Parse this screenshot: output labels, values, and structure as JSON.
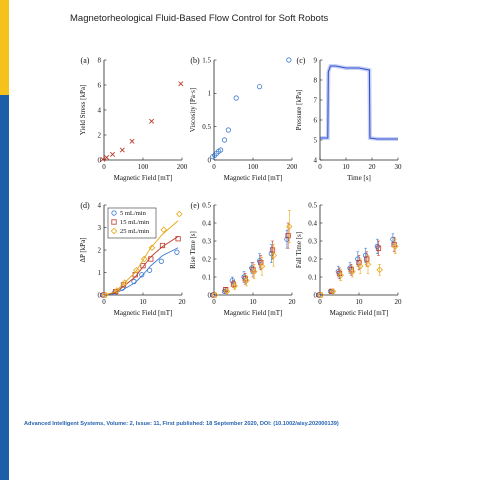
{
  "page": {
    "title": "Magnetorheological Fluid-Based Flow Control for Soft Robots",
    "citation": "Advanced Intelligent Systems, Volume: 2, Issue: 11, First published: 18 September 2020, DOI: (10.1002/aisy.202000139)"
  },
  "colors": {
    "stripe_blue": "#1d5ea8",
    "stripe_yellow": "#f5c21b",
    "blue": "#3b7bd0",
    "red": "#c0392b",
    "orange": "#e6a817",
    "pressure": "#2f4fd0"
  },
  "chart_data": [
    {
      "id": "a",
      "panel_label": "(a)",
      "type": "scatter",
      "xlabel": "Magnetic Field [mT]",
      "ylabel": "Yield Stress [kPa]",
      "xlim": [
        0,
        200
      ],
      "ylim": [
        0,
        8
      ],
      "xticks": [
        "0",
        "100",
        "200"
      ],
      "yticks": [
        "0",
        "2",
        "4",
        "6",
        "8"
      ],
      "series": [
        {
          "marker": "x",
          "color": "#c0392b",
          "x": [
            0,
            10,
            25,
            50,
            75,
            125,
            200
          ],
          "y": [
            0.05,
            0.2,
            0.45,
            0.8,
            1.5,
            3.1,
            6.1
          ]
        }
      ]
    },
    {
      "id": "b",
      "panel_label": "(b)",
      "type": "scatter",
      "xlabel": "Magnetic Field [mT]",
      "ylabel": "Viscosity [Pa·s]",
      "xlim": [
        0,
        200
      ],
      "ylim": [
        0,
        1.5
      ],
      "xticks": [
        "0",
        "100",
        "200"
      ],
      "yticks": [
        "0",
        "0.5",
        "1",
        "1.5"
      ],
      "series": [
        {
          "marker": "o",
          "color": "#3b7bd0",
          "x": [
            0,
            5,
            10,
            15,
            20,
            30,
            40,
            60,
            120,
            195
          ],
          "y": [
            0.05,
            0.07,
            0.1,
            0.13,
            0.15,
            0.3,
            0.45,
            0.93,
            1.1,
            1.5
          ]
        }
      ]
    },
    {
      "id": "c",
      "panel_label": "(c)",
      "type": "line",
      "xlabel": "Time [s]",
      "ylabel": "Pressure [kPa]",
      "xlim": [
        0,
        30
      ],
      "ylim": [
        4,
        9
      ],
      "xticks": [
        "0",
        "10",
        "20",
        "30"
      ],
      "yticks": [
        "4",
        "5",
        "6",
        "7",
        "8",
        "9"
      ],
      "series": [
        {
          "color": "#2f4fd0",
          "x": [
            0,
            3,
            3.2,
            4,
            6,
            10,
            15,
            19,
            19.2,
            22,
            30
          ],
          "y": [
            5.1,
            5.1,
            8.4,
            8.7,
            8.7,
            8.6,
            8.6,
            8.5,
            5.1,
            5.05,
            5.05
          ]
        }
      ]
    },
    {
      "id": "d",
      "panel_label": "(d)",
      "type": "scatter",
      "xlabel": "Magnetic Field [mT]",
      "ylabel": "ΔP [kPa]",
      "xlim": [
        0,
        20
      ],
      "ylim": [
        0,
        4
      ],
      "xticks": [
        "0",
        "10",
        "20"
      ],
      "yticks": [
        "0",
        "1",
        "2",
        "3",
        "4"
      ],
      "legend": {
        "position": "top-left",
        "entries": [
          "5 mL/min",
          "15 mL/min",
          "25 mL/min"
        ]
      },
      "series": [
        {
          "name": "5 mL/min",
          "marker": "o",
          "color": "#3b7bd0",
          "x": [
            0,
            3,
            5,
            8,
            10,
            12,
            15,
            19
          ],
          "y": [
            0,
            0.1,
            0.3,
            0.6,
            0.9,
            1.1,
            1.5,
            1.9
          ],
          "fit": [
            0,
            0.08,
            0.25,
            0.55,
            0.9,
            1.3,
            1.75,
            2.1
          ]
        },
        {
          "name": "15 mL/min",
          "marker": "square",
          "color": "#c0392b",
          "x": [
            0,
            3,
            5,
            8,
            10,
            12,
            15,
            19
          ],
          "y": [
            0,
            0.15,
            0.45,
            0.9,
            1.3,
            1.6,
            2.2,
            2.5
          ],
          "fit": [
            0,
            0.12,
            0.38,
            0.8,
            1.25,
            1.7,
            2.15,
            2.6
          ]
        },
        {
          "name": "25 mL/min",
          "marker": "diamond",
          "color": "#e6a817",
          "x": [
            0,
            3,
            5,
            8,
            10,
            12,
            15,
            19
          ],
          "y": [
            0,
            0.2,
            0.55,
            1.1,
            1.6,
            2.1,
            2.9,
            3.6
          ],
          "fit": [
            0,
            0.15,
            0.5,
            1.0,
            1.55,
            2.1,
            2.7,
            3.3
          ]
        }
      ]
    },
    {
      "id": "e",
      "panel_label": "(e)",
      "type": "scatter",
      "xlabel": "Magnetic Field [mT]",
      "ylabel": "Rise Time [s]",
      "xlim": [
        0,
        20
      ],
      "ylim": [
        0,
        0.5
      ],
      "xticks": [
        "0",
        "10",
        "20"
      ],
      "yticks": [
        "0",
        "0.1",
        "0.2",
        "0.3",
        "0.4",
        "0.5"
      ],
      "series": [
        {
          "marker": "o",
          "color": "#3b7bd0",
          "x": [
            0,
            3,
            5,
            8,
            10,
            12,
            15,
            19
          ],
          "y": [
            0,
            0.02,
            0.08,
            0.1,
            0.15,
            0.19,
            0.23,
            0.31
          ],
          "err": [
            0,
            0.01,
            0.02,
            0.03,
            0.03,
            0.04,
            0.05,
            0.05
          ]
        },
        {
          "marker": "square",
          "color": "#c0392b",
          "x": [
            0,
            3,
            5,
            8,
            10,
            12,
            15,
            19
          ],
          "y": [
            0,
            0.03,
            0.06,
            0.09,
            0.14,
            0.18,
            0.25,
            0.33
          ],
          "err": [
            0,
            0.01,
            0.02,
            0.03,
            0.04,
            0.04,
            0.05,
            0.07
          ]
        },
        {
          "marker": "diamond",
          "color": "#e6a817",
          "x": [
            0,
            3,
            5,
            8,
            10,
            12,
            15,
            19
          ],
          "y": [
            0,
            0.02,
            0.05,
            0.08,
            0.13,
            0.16,
            0.22,
            0.38
          ],
          "err": [
            0,
            0.01,
            0.02,
            0.03,
            0.04,
            0.05,
            0.06,
            0.09
          ]
        }
      ]
    },
    {
      "id": "f",
      "panel_label": "",
      "type": "scatter",
      "xlabel": "Magnetic Field [mT]",
      "ylabel": "Fall Time [s]",
      "xlim": [
        0,
        20
      ],
      "ylim": [
        0,
        0.5
      ],
      "xticks": [
        "0",
        "10",
        "20"
      ],
      "yticks": [
        "0",
        "0.1",
        "0.2",
        "0.3",
        "0.4",
        "0.5"
      ],
      "series": [
        {
          "marker": "o",
          "color": "#3b7bd0",
          "x": [
            0,
            3,
            5,
            8,
            10,
            12,
            15,
            19
          ],
          "y": [
            0,
            0.02,
            0.13,
            0.15,
            0.2,
            0.22,
            0.27,
            0.31
          ],
          "err": [
            0,
            0.01,
            0.03,
            0.03,
            0.04,
            0.04,
            0.04,
            0.03
          ]
        },
        {
          "marker": "square",
          "color": "#c0392b",
          "x": [
            0,
            3,
            5,
            8,
            10,
            12,
            15,
            19
          ],
          "y": [
            0,
            0.02,
            0.12,
            0.14,
            0.18,
            0.2,
            0.26,
            0.28
          ],
          "err": [
            0,
            0.01,
            0.03,
            0.03,
            0.04,
            0.04,
            0.04,
            0.04
          ]
        },
        {
          "marker": "diamond",
          "color": "#e6a817",
          "x": [
            0,
            3,
            5,
            8,
            10,
            12,
            15,
            19
          ],
          "y": [
            0,
            0.02,
            0.11,
            0.13,
            0.16,
            0.17,
            0.14,
            0.27
          ],
          "err": [
            0,
            0.01,
            0.03,
            0.03,
            0.04,
            0.05,
            0.03,
            0.04
          ]
        }
      ]
    }
  ]
}
